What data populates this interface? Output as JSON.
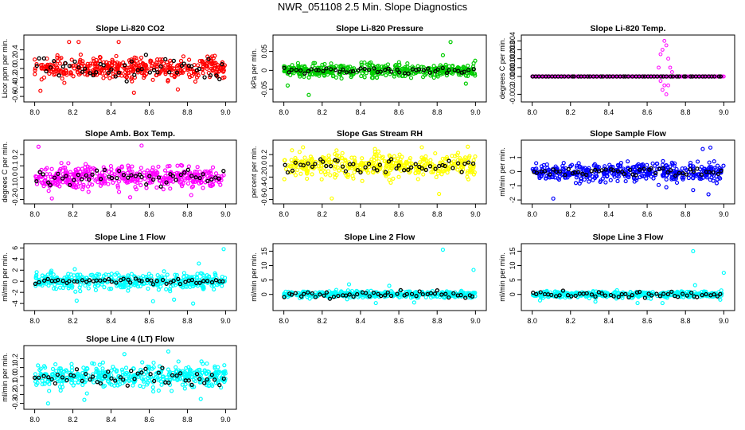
{
  "figure_title": "NWR_051108  2.5 Min. Slope Diagnostics",
  "colors": {
    "axis": "#000000",
    "black_points": "#000000"
  },
  "chart_data": [
    {
      "type": "scatter",
      "title": "Slope Li-820 CO2",
      "ylabel": "Licor ppm per min.",
      "color": "#ff0000",
      "xlim": [
        7.96,
        9.04
      ],
      "ylim": [
        -0.65,
        0.65
      ],
      "xticks": [
        8.0,
        8.2,
        8.4,
        8.6,
        8.8,
        9.0
      ],
      "xtick_labels": [
        "8.0",
        "8.2",
        "8.4",
        "8.6",
        "8.8",
        "9.0"
      ],
      "yticks": [
        -0.6,
        -0.4,
        -0.2,
        0,
        0.2,
        0.4
      ],
      "ytick_labels": [
        "-0.6",
        "-0.4",
        "-0.2",
        "0.0",
        "0.2",
        "0.4"
      ],
      "n_colored": 420,
      "spread": 0.16,
      "extremes": [
        [
          8.18,
          0.57
        ],
        [
          8.23,
          0.57
        ],
        [
          8.44,
          0.57
        ],
        [
          8.52,
          -0.52
        ],
        [
          8.75,
          -0.45
        ],
        [
          8.03,
          -0.48
        ]
      ],
      "n_black": 50,
      "black_spread": 0.16,
      "seed": 11
    },
    {
      "type": "scatter",
      "title": "Slope Li-820 Pressure",
      "ylabel": "kPa per min.",
      "color": "#00cc00",
      "xlim": [
        7.96,
        9.04
      ],
      "ylim": [
        -0.075,
        0.085
      ],
      "xticks": [
        8.0,
        8.2,
        8.4,
        8.6,
        8.8,
        9.0
      ],
      "xtick_labels": [
        "8.0",
        "8.2",
        "8.4",
        "8.6",
        "8.8",
        "9.0"
      ],
      "yticks": [
        -0.05,
        0,
        0.05
      ],
      "ytick_labels": [
        "-0.05",
        "0",
        "0.05"
      ],
      "n_colored": 420,
      "spread": 0.012,
      "extremes": [
        [
          8.87,
          0.075
        ],
        [
          8.13,
          -0.065
        ],
        [
          8.83,
          0.04
        ],
        [
          8.95,
          -0.035
        ],
        [
          8.02,
          -0.04
        ]
      ],
      "n_black": 50,
      "black_spread": 0.006,
      "seed": 23
    },
    {
      "type": "scatter",
      "title": "Slope Li-820 Temp.",
      "ylabel": "degrees C per min.",
      "color": "#ff00ff",
      "xlim": [
        7.96,
        9.04
      ],
      "ylim": [
        -0.0025,
        0.0043
      ],
      "xticks": [
        8.0,
        8.2,
        8.4,
        8.6,
        8.8,
        9.0
      ],
      "xtick_labels": [
        "8.0",
        "8.2",
        "8.4",
        "8.6",
        "8.8",
        "9.0"
      ],
      "yticks": [
        -0.002,
        0,
        0.001,
        0.002,
        0.003,
        0.004
      ],
      "ytick_labels": [
        "-0.002",
        "0.000",
        "0.001",
        "0.002",
        "0.003",
        "0.004"
      ],
      "mode": "flat",
      "flat_value": 0,
      "spikes": [
        [
          8.66,
          0.001
        ],
        [
          8.67,
          0.0025
        ],
        [
          8.68,
          0.003
        ],
        [
          8.69,
          0.004
        ],
        [
          8.7,
          0.0035
        ],
        [
          8.71,
          0.002
        ],
        [
          8.72,
          0.001
        ],
        [
          8.69,
          -0.001
        ],
        [
          8.7,
          -0.002
        ],
        [
          8.68,
          -0.0015
        ],
        [
          8.71,
          -0.001
        ],
        [
          8.67,
          -0.0005
        ],
        [
          8.73,
          0.0005
        ]
      ],
      "n_black": 60,
      "black_spread": 0,
      "seed": 5
    },
    {
      "type": "scatter",
      "title": "Slope Amb. Box Temp.",
      "ylabel": "degrees C per min.",
      "color": "#ff00ff",
      "xlim": [
        7.96,
        9.04
      ],
      "ylim": [
        -0.21,
        0.3
      ],
      "xticks": [
        8.0,
        8.2,
        8.4,
        8.6,
        8.8,
        9.0
      ],
      "xtick_labels": [
        "8.0",
        "8.2",
        "8.4",
        "8.6",
        "8.8",
        "9.0"
      ],
      "yticks": [
        -0.2,
        -0.1,
        0,
        0.1,
        0.2
      ],
      "ytick_labels": [
        "-0.2",
        "-0.1",
        "0.0",
        "0.1",
        "0.2"
      ],
      "n_colored": 420,
      "spread": 0.07,
      "extremes": [
        [
          8.02,
          0.27
        ],
        [
          8.56,
          0.28
        ],
        [
          8.09,
          -0.19
        ],
        [
          8.82,
          -0.16
        ],
        [
          8.5,
          -0.18
        ]
      ],
      "n_black": 50,
      "black_spread": 0.05,
      "seed": 37
    },
    {
      "type": "scatter",
      "title": "Slope Gas Stream RH",
      "ylabel": "percent per min.",
      "color": "#ffff00",
      "xlim": [
        7.96,
        9.04
      ],
      "ylim": [
        -0.62,
        0.4
      ],
      "xticks": [
        8.0,
        8.2,
        8.4,
        8.6,
        8.8,
        9.0
      ],
      "xtick_labels": [
        "8.0",
        "8.2",
        "8.4",
        "8.6",
        "8.8",
        "9.0"
      ],
      "yticks": [
        -0.6,
        -0.4,
        -0.2,
        0,
        0.2
      ],
      "ytick_labels": [
        "-0.6",
        "-0.4",
        "-0.2",
        "0.0",
        "0.2"
      ],
      "n_colored": 420,
      "spread": 0.14,
      "extremes": [
        [
          8.25,
          -0.58
        ],
        [
          8.81,
          -0.5
        ],
        [
          8.72,
          0.33
        ],
        [
          8.1,
          0.33
        ],
        [
          8.96,
          0.34
        ]
      ],
      "n_black": 50,
      "black_spread": 0.1,
      "seed": 41
    },
    {
      "type": "scatter",
      "title": "Slope Sample Flow",
      "ylabel": "ml/min per min.",
      "color": "#0000ff",
      "xlim": [
        7.96,
        9.04
      ],
      "ylim": [
        -2.05,
        2.0
      ],
      "xticks": [
        8.0,
        8.2,
        8.4,
        8.6,
        8.8,
        9.0
      ],
      "xtick_labels": [
        "8.0",
        "8.2",
        "8.4",
        "8.6",
        "8.8",
        "9.0"
      ],
      "yticks": [
        -2,
        -1,
        0,
        1
      ],
      "ytick_labels": [
        "-2",
        "-1",
        "0",
        "1"
      ],
      "n_colored": 420,
      "spread": 0.45,
      "extremes": [
        [
          8.11,
          -1.9
        ],
        [
          8.89,
          1.6
        ],
        [
          8.93,
          1.7
        ],
        [
          8.84,
          -1.3
        ],
        [
          8.92,
          -1.6
        ],
        [
          8.7,
          -1.1
        ]
      ],
      "n_black": 50,
      "black_spread": 0.2,
      "seed": 53
    },
    {
      "type": "scatter",
      "title": "Slope Line 1 Flow",
      "ylabel": "ml/min per min.",
      "color": "#00ffff",
      "xlim": [
        7.96,
        9.04
      ],
      "ylim": [
        -4.7,
        6.2
      ],
      "xticks": [
        8.0,
        8.2,
        8.4,
        8.6,
        8.8,
        9.0
      ],
      "xtick_labels": [
        "8.0",
        "8.2",
        "8.4",
        "8.6",
        "8.8",
        "9.0"
      ],
      "yticks": [
        -4,
        -2,
        0,
        2,
        4,
        6
      ],
      "ytick_labels": [
        "-4",
        "-2",
        "0",
        "2",
        "4",
        "6"
      ],
      "n_colored": 420,
      "spread": 1.0,
      "extremes": [
        [
          8.99,
          5.8
        ],
        [
          8.86,
          3.2
        ],
        [
          8.83,
          -4.0
        ],
        [
          8.22,
          -3.5
        ],
        [
          8.62,
          -3.6
        ],
        [
          8.73,
          -3.3
        ]
      ],
      "n_black": 50,
      "black_spread": 0.35,
      "seed": 61
    },
    {
      "type": "scatter",
      "title": "Slope Line 2 Flow",
      "ylabel": "ml/min per min.",
      "color": "#00ffff",
      "xlim": [
        7.96,
        9.04
      ],
      "ylim": [
        -4.5,
        16.5
      ],
      "xticks": [
        8.0,
        8.2,
        8.4,
        8.6,
        8.8,
        9.0
      ],
      "xtick_labels": [
        "8.0",
        "8.2",
        "8.4",
        "8.6",
        "8.8",
        "9.0"
      ],
      "yticks": [
        0,
        5,
        10,
        15
      ],
      "ytick_labels": [
        "0",
        "5",
        "10",
        "15"
      ],
      "n_colored": 420,
      "spread": 0.8,
      "extremes": [
        [
          8.83,
          15.5
        ],
        [
          8.99,
          8.5
        ],
        [
          8.48,
          -3.0
        ],
        [
          8.34,
          3.5
        ],
        [
          8.68,
          -2.8
        ],
        [
          8.55,
          3.0
        ]
      ],
      "n_black": 50,
      "black_spread": 0.9,
      "seed": 71
    },
    {
      "type": "scatter",
      "title": "Slope Line 3 Flow",
      "ylabel": "ml/min per min.",
      "color": "#00ffff",
      "xlim": [
        7.96,
        9.04
      ],
      "ylim": [
        -4.5,
        16.5
      ],
      "xticks": [
        8.0,
        8.2,
        8.4,
        8.6,
        8.8,
        9.0
      ],
      "xtick_labels": [
        "8.0",
        "8.2",
        "8.4",
        "8.6",
        "8.8",
        "9.0"
      ],
      "yticks": [
        0,
        5,
        10,
        15
      ],
      "ytick_labels": [
        "0",
        "5",
        "10",
        "15"
      ],
      "n_colored": 420,
      "spread": 0.8,
      "extremes": [
        [
          8.84,
          15.0
        ],
        [
          9.0,
          7.5
        ],
        [
          8.55,
          -3.0
        ],
        [
          8.68,
          -3.0
        ],
        [
          8.33,
          -2.5
        ],
        [
          8.85,
          3.2
        ]
      ],
      "n_black": 50,
      "black_spread": 0.9,
      "seed": 83
    },
    {
      "type": "scatter",
      "title": "Slope Line 4 (LT) Flow",
      "ylabel": "ml/min per min.",
      "color": "#00ffff",
      "xlim": [
        7.96,
        9.04
      ],
      "ylim": [
        -0.33,
        0.31
      ],
      "xticks": [
        8.0,
        8.2,
        8.4,
        8.6,
        8.8,
        9.0
      ],
      "xtick_labels": [
        "8.0",
        "8.2",
        "8.4",
        "8.6",
        "8.8",
        "9.0"
      ],
      "yticks": [
        -0.3,
        -0.2,
        -0.1,
        0,
        0.1,
        0.2
      ],
      "ytick_labels": [
        "-0.3",
        "-0.2",
        "-0.1",
        "0.0",
        "0.1",
        "0.2"
      ],
      "n_colored": 420,
      "spread": 0.09,
      "extremes": [
        [
          8.7,
          0.28
        ],
        [
          8.07,
          -0.3
        ],
        [
          8.26,
          -0.26
        ],
        [
          8.87,
          -0.25
        ],
        [
          8.47,
          0.25
        ]
      ],
      "n_black": 50,
      "black_spread": 0.08,
      "seed": 97
    }
  ]
}
